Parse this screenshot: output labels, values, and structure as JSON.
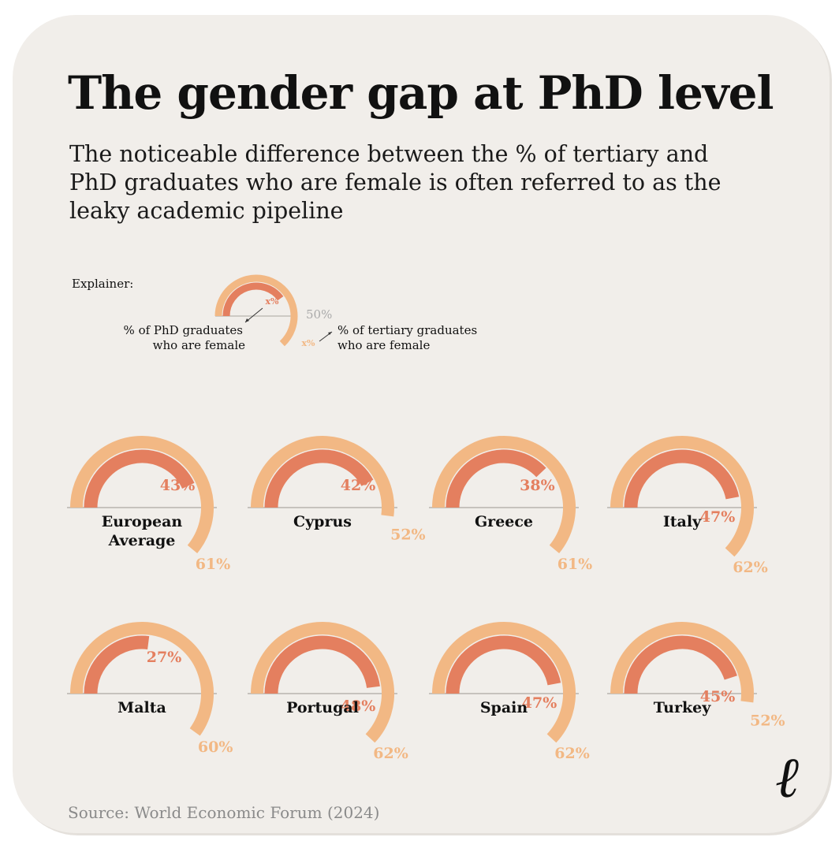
{
  "title": "The gender gap at PhD level",
  "subtitle": "The noticeable difference between the % of tertiary and PhD graduates who are female is often referred to as the leaky academic pipeline",
  "source": "Source: World Economic Forum (2024)",
  "logo": "ℓ",
  "colors": {
    "tertiary": "#f2b884",
    "phd": "#e47f5f",
    "baseline": "#b8b4ae",
    "label_dark": "#111111"
  },
  "explainer": {
    "heading": "Explainer:",
    "phd_marker": "x%",
    "tertiary_marker": "x%",
    "half_label": "50%",
    "phd_label_line1": "% of PhD graduates",
    "phd_label_line2": "who are female",
    "tertiary_label_line1": "% of tertiary graduates",
    "tertiary_label_line2": "who are female"
  },
  "chart_data": {
    "type": "gauge",
    "title": "The gender gap at PhD level",
    "scale": [
      0,
      100
    ],
    "series": [
      {
        "name": "% of tertiary graduates who are female"
      },
      {
        "name": "% of PhD graduates who are female"
      }
    ],
    "items": [
      {
        "country": [
          "European",
          "Average"
        ],
        "tertiary": 61,
        "phd": 43,
        "tertiary_label": "61%",
        "phd_label": "43%"
      },
      {
        "country": [
          "Cyprus"
        ],
        "tertiary": 52,
        "phd": 42,
        "tertiary_label": "52%",
        "phd_label": "42%"
      },
      {
        "country": [
          "Greece"
        ],
        "tertiary": 61,
        "phd": 38,
        "tertiary_label": "61%",
        "phd_label": "38%"
      },
      {
        "country": [
          "Italy"
        ],
        "tertiary": 62,
        "phd": 47,
        "tertiary_label": "62%",
        "phd_label": "47%"
      },
      {
        "country": [
          "Malta"
        ],
        "tertiary": 60,
        "phd": 27,
        "tertiary_label": "60%",
        "phd_label": "27%"
      },
      {
        "country": [
          "Portugal"
        ],
        "tertiary": 62,
        "phd": 48,
        "tertiary_label": "62%",
        "phd_label": "48%"
      },
      {
        "country": [
          "Spain"
        ],
        "tertiary": 62,
        "phd": 47,
        "tertiary_label": "62%",
        "phd_label": "47%"
      },
      {
        "country": [
          "Turkey"
        ],
        "tertiary": 52,
        "phd": 45,
        "tertiary_label": "52%",
        "phd_label": "45%"
      }
    ]
  }
}
